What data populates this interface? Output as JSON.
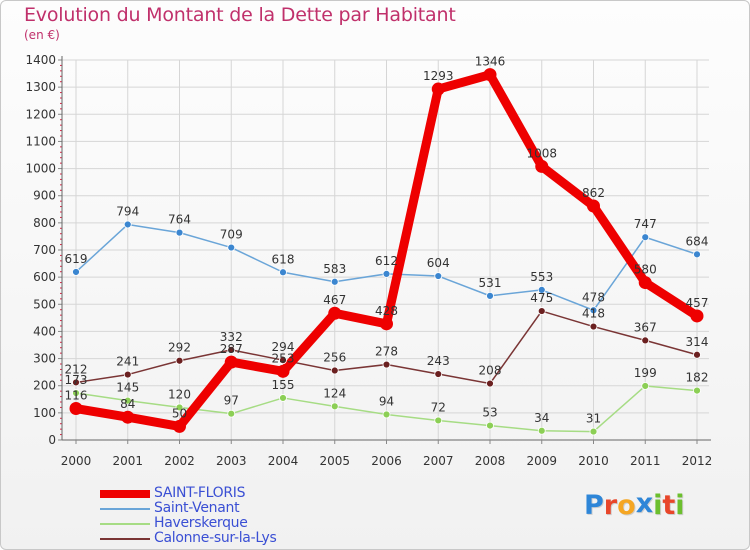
{
  "header": {
    "title": "Evolution du Montant de la Dette par Habitant",
    "subtitle": "(en €)"
  },
  "brand": {
    "letters": [
      "P",
      "r",
      "o",
      "x",
      "i",
      "t",
      "i"
    ],
    "colors": [
      "#2e86d8",
      "#e8462a",
      "#f5a623",
      "#2e86d8",
      "#6cbf2e",
      "#e8462a",
      "#6cbf2e"
    ]
  },
  "chart_data": {
    "type": "line",
    "title": "Evolution du Montant de la Dette par Habitant",
    "subtitle": "(en €)",
    "xlabel": "",
    "ylabel": "",
    "x": [
      "2000",
      "2001",
      "2002",
      "2003",
      "2004",
      "2005",
      "2006",
      "2007",
      "2008",
      "2009",
      "2010",
      "2011",
      "2012"
    ],
    "ylim": [
      0,
      1400
    ],
    "yticks": [
      "0",
      "100",
      "200",
      "300",
      "400",
      "500",
      "600",
      "700",
      "800",
      "900",
      "1000",
      "1100",
      "1200",
      "1300",
      "1400"
    ],
    "grid": true,
    "legend_position": "bottom-left",
    "series": [
      {
        "name": "SAINT-FLORIS",
        "color": "#ee0000",
        "marker_color": "#ee0000",
        "thick": true,
        "values": [
          116,
          84,
          50,
          287,
          253,
          467,
          428,
          1293,
          1346,
          1008,
          862,
          580,
          457
        ],
        "labels": [
          "116",
          "84",
          "50",
          "287",
          "253",
          "467",
          "428",
          "1293",
          "1346",
          "1008",
          "862",
          "580",
          "457"
        ]
      },
      {
        "name": "Saint-Venant",
        "color": "#6aa5d8",
        "marker_color": "#3b86d0",
        "thick": false,
        "values": [
          619,
          794,
          764,
          709,
          618,
          583,
          612,
          604,
          531,
          553,
          478,
          747,
          684
        ],
        "labels": [
          "619",
          "794",
          "764",
          "709",
          "618",
          "583",
          "612",
          "604",
          "531",
          "553",
          "478",
          "747",
          "684"
        ]
      },
      {
        "name": "Haverskerque",
        "color": "#a6dc84",
        "marker_color": "#8ccf55",
        "thick": false,
        "values": [
          173,
          145,
          120,
          97,
          155,
          124,
          94,
          72,
          53,
          34,
          31,
          199,
          182
        ],
        "labels": [
          "173",
          "145",
          "120",
          "97",
          "155",
          "124",
          "94",
          "72",
          "53",
          "34",
          "31",
          "199",
          "182"
        ]
      },
      {
        "name": "Calonne-sur-la-Lys",
        "color": "#7a3535",
        "marker_color": "#6b2020",
        "thick": false,
        "values": [
          212,
          241,
          292,
          332,
          294,
          256,
          278,
          243,
          208,
          475,
          418,
          367,
          314
        ],
        "labels": [
          "212",
          "241",
          "292",
          "332",
          "294",
          "256",
          "278",
          "243",
          "208",
          "475",
          "418",
          "367",
          "314"
        ]
      }
    ]
  }
}
